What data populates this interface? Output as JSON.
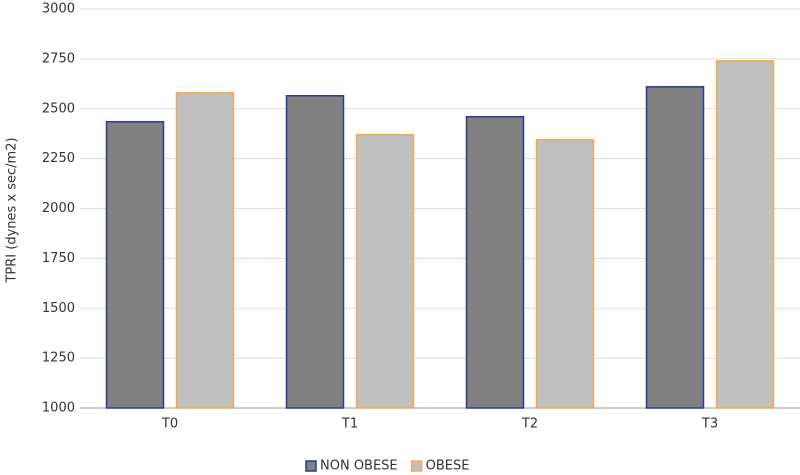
{
  "chart_data": {
    "type": "bar",
    "y_label": "TPRI (dynes x sec/m2)",
    "categories": [
      "T0",
      "T1",
      "T2",
      "T3"
    ],
    "series": [
      {
        "name": "NON OBESE",
        "color": "#808080",
        "edge_color": "#2b3990",
        "values": [
          2435,
          2565,
          2460,
          2610
        ]
      },
      {
        "name": "OBESE",
        "color": "#c0c0c0",
        "edge_color": "#f7a84a",
        "values": [
          2580,
          2370,
          2345,
          2740
        ]
      }
    ],
    "ylim": [
      1000,
      3000
    ],
    "yticks": [
      1000,
      1250,
      1500,
      1750,
      2000,
      2250,
      2500,
      2750,
      3000
    ],
    "grid": true,
    "legend": "bottom"
  }
}
